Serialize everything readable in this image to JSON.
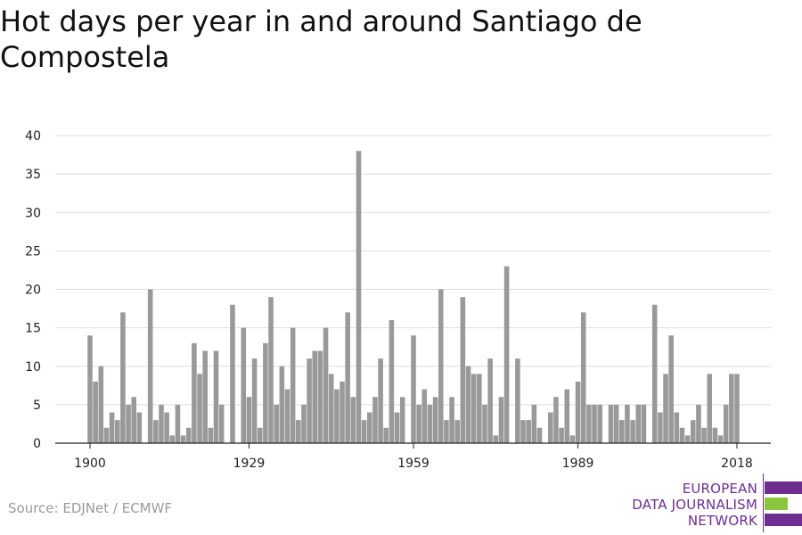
{
  "title": "Hot days per year in and around Santiago de Compostela",
  "source": "Source: EDJNet / ECMWF",
  "logo": {
    "lines": [
      "EUROPEAN",
      "DATA JOURNALISM",
      "NETWORK"
    ],
    "colors": {
      "purple": "#6f2c91",
      "green": "#8cc63f"
    }
  },
  "colors": {
    "bar": "#999999",
    "grid": "#dddddd",
    "axis": "#222222"
  },
  "chart_data": {
    "type": "bar",
    "title": "Hot days per year in and around Santiago de Compostela",
    "xlabel": "",
    "ylabel": "",
    "ylim": [
      0,
      40
    ],
    "yticks": [
      0,
      5,
      10,
      15,
      20,
      25,
      30,
      35,
      40
    ],
    "xticks": [
      1900,
      1929,
      1959,
      1989,
      2018
    ],
    "grid": true,
    "x": [
      1900,
      1901,
      1902,
      1903,
      1904,
      1905,
      1906,
      1907,
      1908,
      1909,
      1910,
      1911,
      1912,
      1913,
      1914,
      1915,
      1916,
      1917,
      1918,
      1919,
      1920,
      1921,
      1922,
      1923,
      1924,
      1925,
      1926,
      1927,
      1928,
      1929,
      1930,
      1931,
      1932,
      1933,
      1934,
      1935,
      1936,
      1937,
      1938,
      1939,
      1940,
      1941,
      1942,
      1943,
      1944,
      1945,
      1946,
      1947,
      1948,
      1949,
      1950,
      1951,
      1952,
      1953,
      1954,
      1955,
      1956,
      1957,
      1958,
      1959,
      1960,
      1961,
      1962,
      1963,
      1964,
      1965,
      1966,
      1967,
      1968,
      1969,
      1970,
      1971,
      1972,
      1973,
      1974,
      1975,
      1976,
      1977,
      1978,
      1979,
      1980,
      1981,
      1982,
      1983,
      1984,
      1985,
      1986,
      1987,
      1988,
      1989,
      1990,
      1991,
      1992,
      1993,
      1994,
      1995,
      1996,
      1997,
      1998,
      1999,
      2000,
      2001,
      2002,
      2003,
      2004,
      2005,
      2006,
      2007,
      2008,
      2009,
      2010,
      2011,
      2012,
      2013,
      2014,
      2015,
      2016,
      2017,
      2018
    ],
    "values": [
      14,
      8,
      10,
      2,
      4,
      3,
      17,
      5,
      6,
      4,
      0,
      20,
      3,
      5,
      4,
      1,
      5,
      1,
      2,
      13,
      9,
      12,
      2,
      12,
      5,
      0,
      18,
      0,
      15,
      6,
      11,
      2,
      13,
      19,
      5,
      10,
      7,
      15,
      3,
      5,
      11,
      12,
      12,
      15,
      9,
      7,
      8,
      17,
      6,
      38,
      3,
      4,
      6,
      11,
      2,
      16,
      4,
      6,
      0,
      14,
      5,
      7,
      5,
      6,
      20,
      3,
      6,
      3,
      19,
      10,
      9,
      9,
      5,
      11,
      1,
      6,
      23,
      0,
      11,
      3,
      3,
      5,
      2,
      0,
      4,
      6,
      2,
      7,
      1,
      8,
      17,
      5,
      5,
      5,
      0,
      5,
      5,
      3,
      5,
      3,
      5,
      5,
      0,
      18,
      4,
      9,
      14,
      4,
      2,
      1,
      3,
      5,
      2,
      9,
      2,
      1,
      5,
      9,
      9
    ]
  }
}
